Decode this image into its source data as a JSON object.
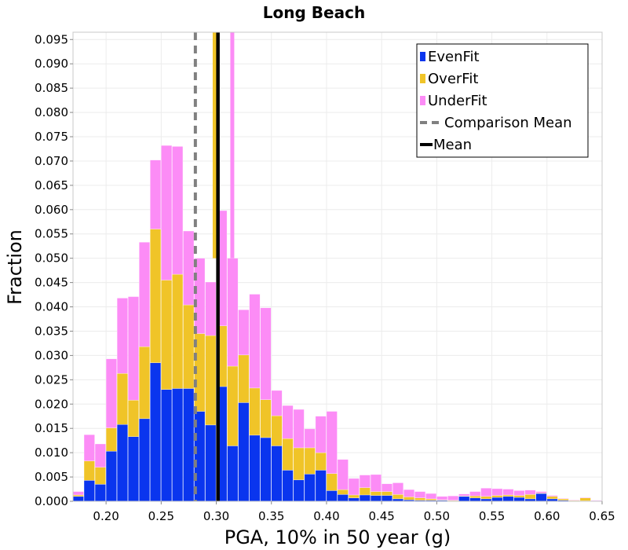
{
  "chart_data": {
    "type": "bar",
    "stacked": true,
    "title": "Long Beach",
    "xlabel": "PGA, 10% in 50 year (g)",
    "ylabel": "Fraction",
    "xlim": [
      0.17,
      0.65
    ],
    "ylim": [
      0,
      0.0965
    ],
    "bin_width": 0.01,
    "grid": true,
    "legend_position": "top-right",
    "x_ticks": [
      "0.20",
      "0.25",
      "0.30",
      "0.35",
      "0.40",
      "0.45",
      "0.50",
      "0.55",
      "0.60",
      "0.65"
    ],
    "y_ticks": [
      "0.000",
      "0.005",
      "0.010",
      "0.015",
      "0.020",
      "0.025",
      "0.030",
      "0.035",
      "0.040",
      "0.045",
      "0.050",
      "0.055",
      "0.060",
      "0.065",
      "0.070",
      "0.075",
      "0.080",
      "0.085",
      "0.090",
      "0.095"
    ],
    "bin_centers": [
      0.175,
      0.185,
      0.195,
      0.205,
      0.215,
      0.225,
      0.235,
      0.245,
      0.255,
      0.265,
      0.275,
      0.285,
      0.295,
      0.305,
      0.315,
      0.325,
      0.335,
      0.345,
      0.355,
      0.365,
      0.375,
      0.385,
      0.395,
      0.405,
      0.415,
      0.425,
      0.435,
      0.445,
      0.455,
      0.465,
      0.475,
      0.485,
      0.495,
      0.505,
      0.515,
      0.525,
      0.535,
      0.545,
      0.555,
      0.565,
      0.575,
      0.585,
      0.595,
      0.605,
      0.615,
      0.625,
      0.635,
      0.645
    ],
    "series": [
      {
        "name": "EvenFit",
        "color": "#0a35ee",
        "values": [
          0.001,
          0.0043,
          0.0035,
          0.0103,
          0.0158,
          0.0133,
          0.017,
          0.0285,
          0.023,
          0.0232,
          0.0232,
          0.0185,
          0.0157,
          0.0236,
          0.0114,
          0.0203,
          0.0136,
          0.0131,
          0.0114,
          0.0064,
          0.0044,
          0.0056,
          0.0064,
          0.0022,
          0.0014,
          0.0007,
          0.0013,
          0.0012,
          0.0012,
          0.0005,
          0.0003,
          0.0002,
          0.0002,
          0.0002,
          0.0001,
          0.001,
          0.0007,
          0.0005,
          0.0008,
          0.001,
          0.0008,
          0.0005,
          0.0016,
          0.0005,
          0.0002,
          0.0001,
          0.0001,
          0.0001
        ]
      },
      {
        "name": "OverFit",
        "color": "#f0c428",
        "values": [
          0.0003,
          0.004,
          0.0035,
          0.0048,
          0.0105,
          0.0075,
          0.0148,
          0.0275,
          0.0225,
          0.0235,
          0.0172,
          0.016,
          0.0184,
          0.0125,
          0.0164,
          0.0098,
          0.0097,
          0.0078,
          0.0062,
          0.0065,
          0.0066,
          0.0054,
          0.0036,
          0.0035,
          0.001,
          0.0006,
          0.0015,
          0.0008,
          0.0008,
          0.0009,
          0.0006,
          0.0005,
          0.0003,
          0.0001,
          0.0001,
          0.0001,
          0.0004,
          0.0005,
          0.0004,
          0.0003,
          0.0004,
          0.0009,
          0.0001,
          0.0005,
          0.0003,
          0.0001,
          0.0006,
          0
        ]
      },
      {
        "name": "UnderFit",
        "color": "#fc8cf6",
        "values": [
          0.0007,
          0.0054,
          0.0048,
          0.0142,
          0.0155,
          0.0213,
          0.0215,
          0.0142,
          0.0277,
          0.0263,
          0.0152,
          0.0155,
          0.011,
          0.0237,
          0.0222,
          0.0093,
          0.0193,
          0.0189,
          0.0052,
          0.0068,
          0.0079,
          0.0039,
          0.0075,
          0.0128,
          0.0062,
          0.0034,
          0.0026,
          0.0035,
          0.0016,
          0.0024,
          0.0015,
          0.0013,
          0.0011,
          0.0007,
          0.0009,
          0.0004,
          0.0009,
          0.0017,
          0.0014,
          0.0012,
          0.001,
          0.0009,
          0.0003,
          0.0002,
          0.0001,
          0.0001,
          0.0001,
          0.0001
        ]
      }
    ],
    "spikes": [
      {
        "series": "OverFit",
        "x": 0.2985,
        "top": 0.0965
      },
      {
        "series": "UnderFit",
        "x": 0.3145,
        "top": 0.0965
      }
    ],
    "reference_lines": [
      {
        "name": "Comparison Mean",
        "x": 0.281,
        "style": "dashed",
        "color": "#808080"
      },
      {
        "name": "Mean",
        "x": 0.3015,
        "style": "solid",
        "color": "#000000"
      }
    ],
    "legend": [
      {
        "label": "EvenFit",
        "kind": "box",
        "color": "#0a35ee"
      },
      {
        "label": "OverFit",
        "kind": "box",
        "color": "#f0c428"
      },
      {
        "label": "UnderFit",
        "kind": "box",
        "color": "#fc8cf6"
      },
      {
        "label": "Comparison Mean",
        "kind": "dash",
        "color": "#808080"
      },
      {
        "label": "Mean",
        "kind": "line",
        "color": "#000000"
      }
    ]
  }
}
